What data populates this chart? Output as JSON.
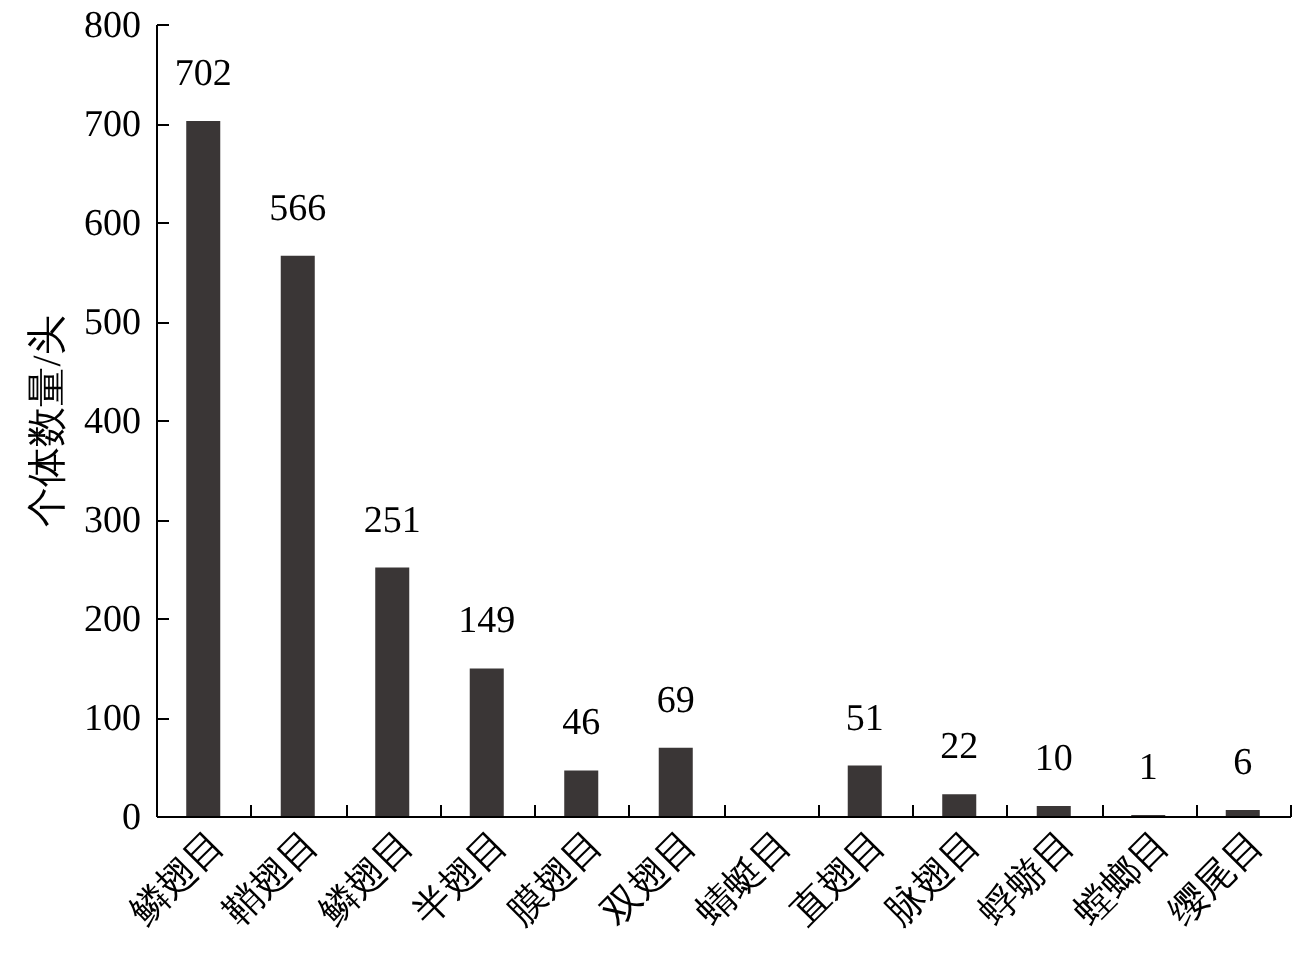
{
  "chart_data": {
    "type": "bar",
    "ylabel": "个体数量/头",
    "categories": [
      "鳞翅目",
      "鞘翅目",
      "鳞翅目",
      "半翅目",
      "膜翅目",
      "双翅目",
      "蜻蜓目",
      "直翅目",
      "脉翅目",
      "蜉蝣目",
      "螳螂目",
      "缨尾目"
    ],
    "values": [
      702,
      566,
      251,
      149,
      46,
      69,
      null,
      51,
      22,
      10,
      1,
      6
    ],
    "color": "#3a3636",
    "ylim": [
      0,
      800
    ],
    "yticks": [
      0,
      100,
      200,
      300,
      400,
      500,
      600,
      700,
      800
    ],
    "data_labels": true,
    "grid": false
  }
}
